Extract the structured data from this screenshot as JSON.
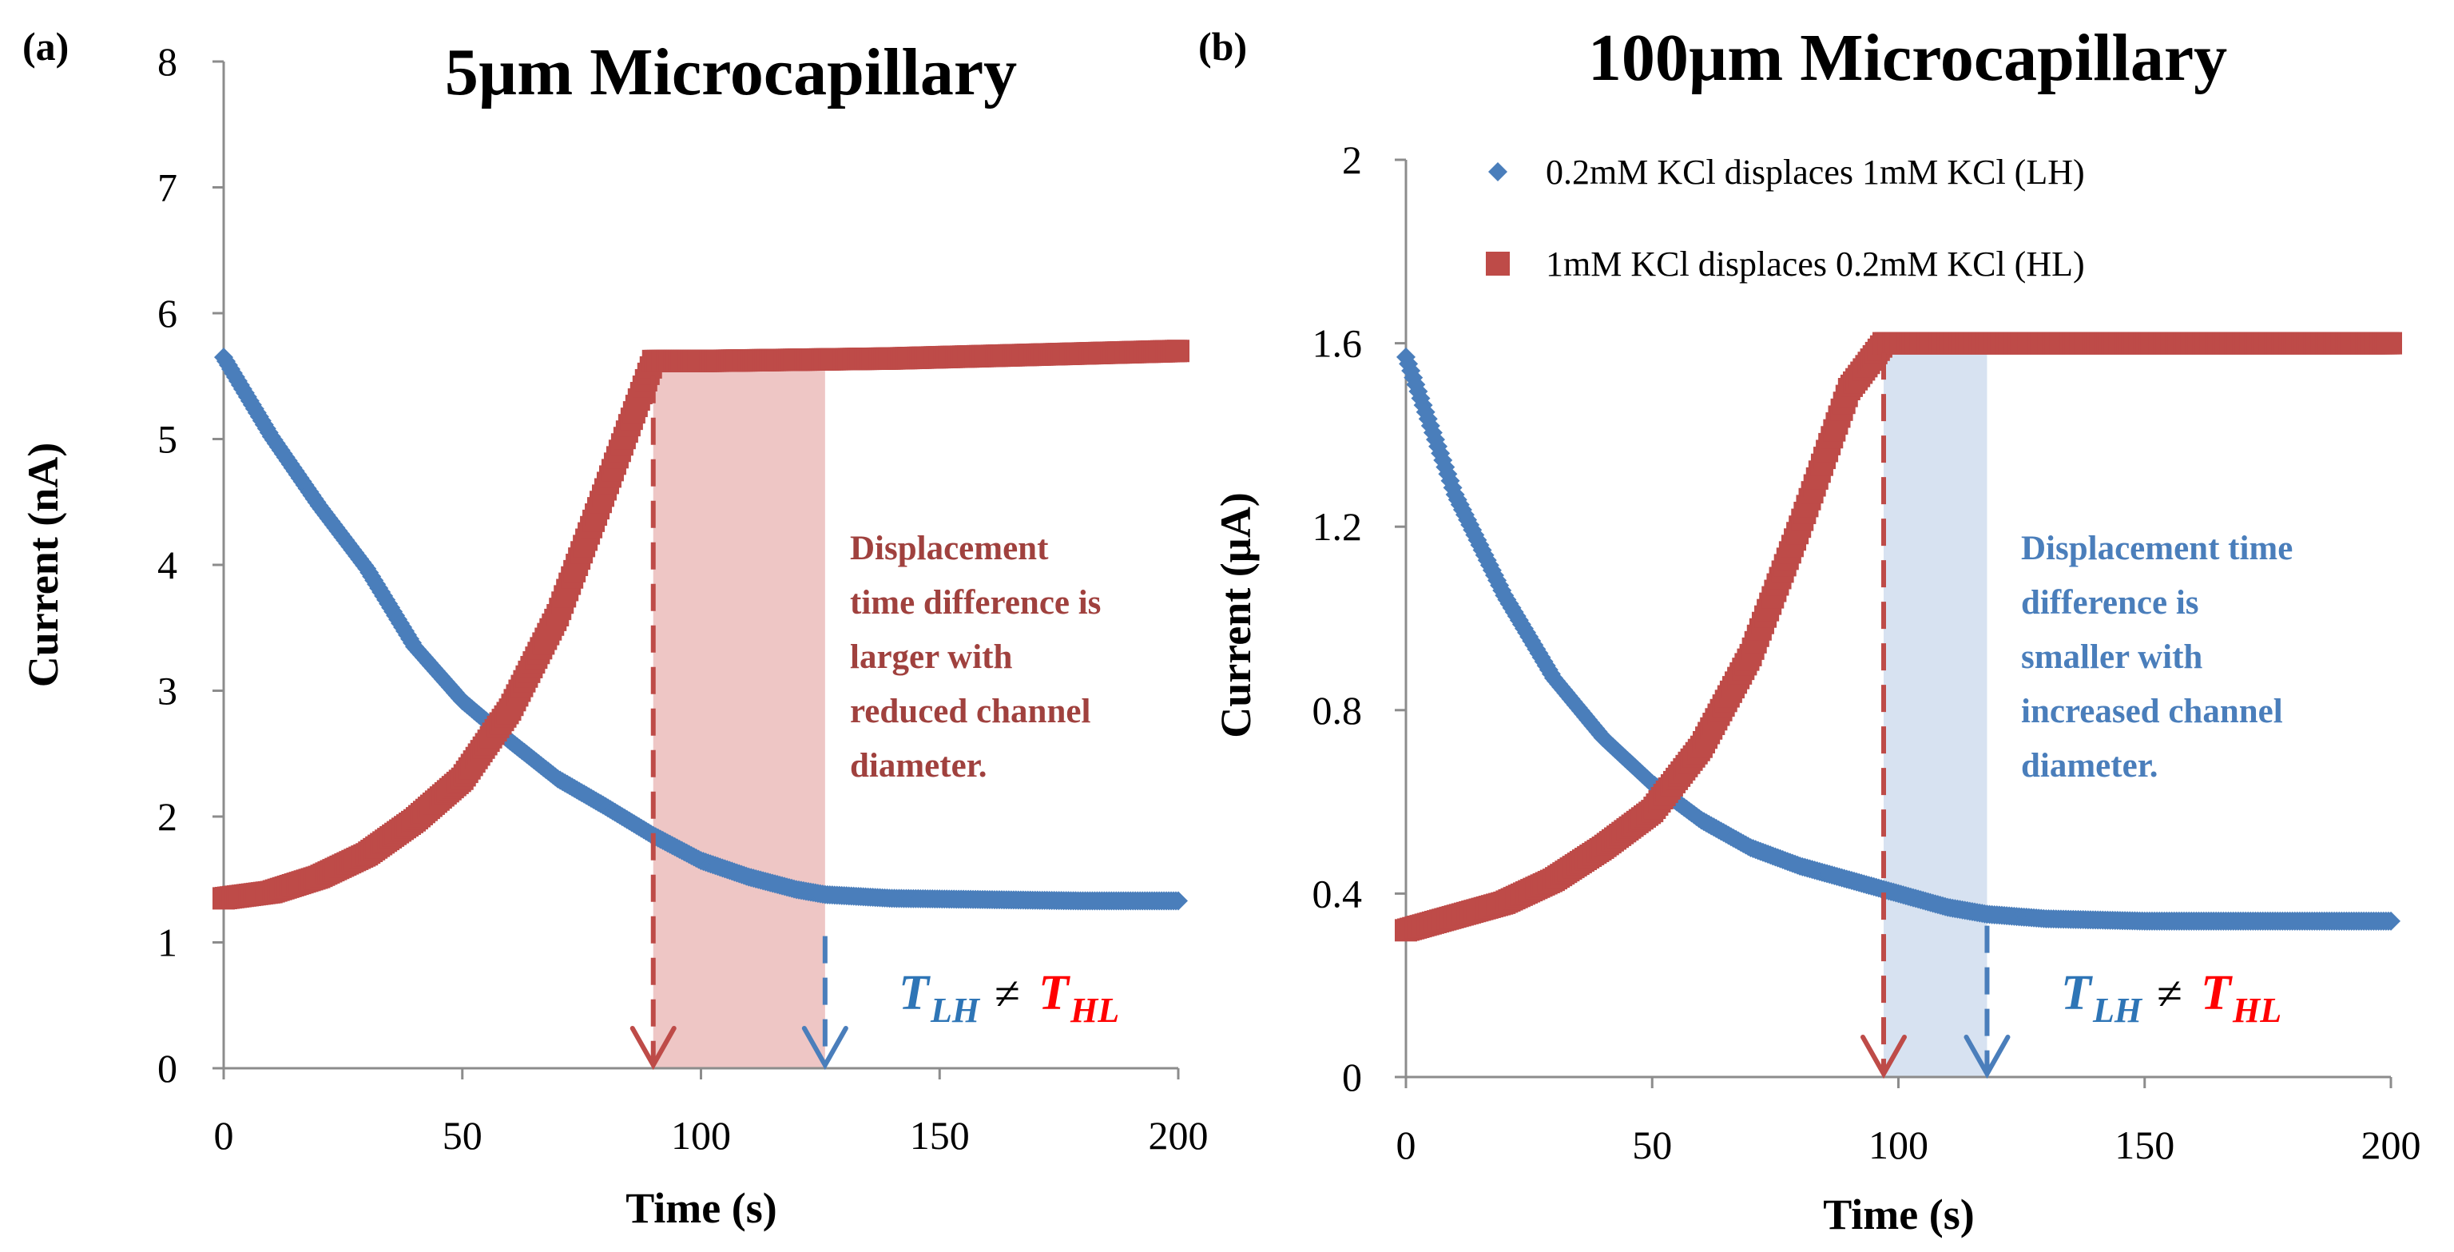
{
  "chart_data": [
    {
      "type": "scatter",
      "panel_label": "(a)",
      "title": "5µm Microcapillary",
      "xlabel": "Time (s)",
      "ylabel": "Current (nA)",
      "xlim": [
        0,
        200
      ],
      "ylim": [
        0,
        8
      ],
      "xticks": [
        "0",
        "50",
        "100",
        "150",
        "200"
      ],
      "yticks": [
        "0",
        "1",
        "2",
        "3",
        "4",
        "5",
        "6",
        "7",
        "8"
      ],
      "series": [
        {
          "name": "0.2mM KCl displaces 1mM KCl (LH)",
          "color": "#4a7ebb",
          "marker": "diamond",
          "x": [
            0,
            10,
            20,
            30,
            40,
            50,
            60,
            70,
            80,
            90,
            100,
            110,
            120,
            126,
            140,
            160,
            180,
            200
          ],
          "y": [
            5.65,
            5.02,
            4.47,
            3.97,
            3.35,
            2.92,
            2.6,
            2.3,
            2.08,
            1.85,
            1.65,
            1.52,
            1.42,
            1.38,
            1.35,
            1.34,
            1.33,
            1.33
          ]
        },
        {
          "name": "1mM KCl displaces 0.2mM KCl (HL)",
          "color": "#be4b48",
          "marker": "square",
          "x": [
            0,
            10,
            20,
            30,
            40,
            50,
            60,
            70,
            80,
            90,
            100,
            120,
            140,
            160,
            180,
            200
          ],
          "y": [
            1.35,
            1.4,
            1.52,
            1.7,
            1.97,
            2.3,
            2.85,
            3.6,
            4.6,
            5.62,
            5.62,
            5.63,
            5.64,
            5.66,
            5.68,
            5.7
          ]
        }
      ],
      "shaded_interval": {
        "x": [
          90,
          126
        ],
        "color": "#e8b3b1",
        "max_y": 5.6
      },
      "arrows": [
        {
          "x": 90,
          "color": "#be4b48",
          "y_from": 5.5,
          "y_to": 0
        },
        {
          "x": 126,
          "color": "#4a7ebb",
          "y_from": 1.05,
          "y_to": 0
        }
      ],
      "annotation": {
        "lines": [
          "Displacement",
          "time difference is",
          "larger with",
          "reduced channel",
          "diameter."
        ],
        "color": "#a0413e"
      },
      "inequality": {
        "left": "T",
        "left_sub": "LH",
        "symbol": "≠",
        "right": "T",
        "right_sub": "HL",
        "left_color": "#2e75b6",
        "right_color": "#ff0000"
      }
    },
    {
      "type": "scatter",
      "panel_label": "(b)",
      "title": "100µm Microcapillary",
      "xlabel": "Time (s)",
      "ylabel": "Current (µA)",
      "xlim": [
        0,
        200
      ],
      "ylim": [
        0,
        2
      ],
      "xticks": [
        "0",
        "50",
        "100",
        "150",
        "200"
      ],
      "yticks": [
        "0",
        "0.4",
        "0.8",
        "1.2",
        "1.6",
        "2"
      ],
      "legend": {
        "position": "top-right"
      },
      "series": [
        {
          "name": "0.2mM KCl displaces 1mM KCl (LH)",
          "color": "#4a7ebb",
          "marker": "diamond",
          "x": [
            0,
            10,
            20,
            30,
            40,
            50,
            60,
            70,
            80,
            90,
            100,
            110,
            118,
            130,
            150,
            170,
            200
          ],
          "y": [
            1.57,
            1.27,
            1.05,
            0.87,
            0.74,
            0.64,
            0.56,
            0.5,
            0.46,
            0.43,
            0.4,
            0.37,
            0.355,
            0.345,
            0.34,
            0.34,
            0.34
          ]
        },
        {
          "name": "1mM KCl displaces 0.2mM KCl (HL)",
          "color": "#be4b48",
          "marker": "square",
          "x": [
            0,
            10,
            20,
            30,
            40,
            50,
            60,
            70,
            80,
            90,
            97,
            110,
            130,
            150,
            170,
            200
          ],
          "y": [
            0.32,
            0.35,
            0.38,
            0.43,
            0.5,
            0.58,
            0.72,
            0.92,
            1.2,
            1.5,
            1.6,
            1.6,
            1.6,
            1.6,
            1.6,
            1.6
          ]
        }
      ],
      "shaded_interval": {
        "x": [
          97,
          118
        ],
        "color": "#c9d8ec",
        "max_y": 1.59
      },
      "arrows": [
        {
          "x": 97,
          "color": "#be4b48",
          "y_from": 1.58,
          "y_to": 0
        },
        {
          "x": 118,
          "color": "#4a7ebb",
          "y_from": 0.33,
          "y_to": 0
        }
      ],
      "annotation": {
        "lines": [
          "Displacement time",
          "difference is",
          "smaller with",
          "increased channel",
          "diameter."
        ],
        "color": "#4a7ebb"
      },
      "inequality": {
        "left": "T",
        "left_sub": "LH",
        "symbol": "≠",
        "right": "T",
        "right_sub": "HL",
        "left_color": "#2e75b6",
        "right_color": "#ff0000"
      }
    }
  ]
}
